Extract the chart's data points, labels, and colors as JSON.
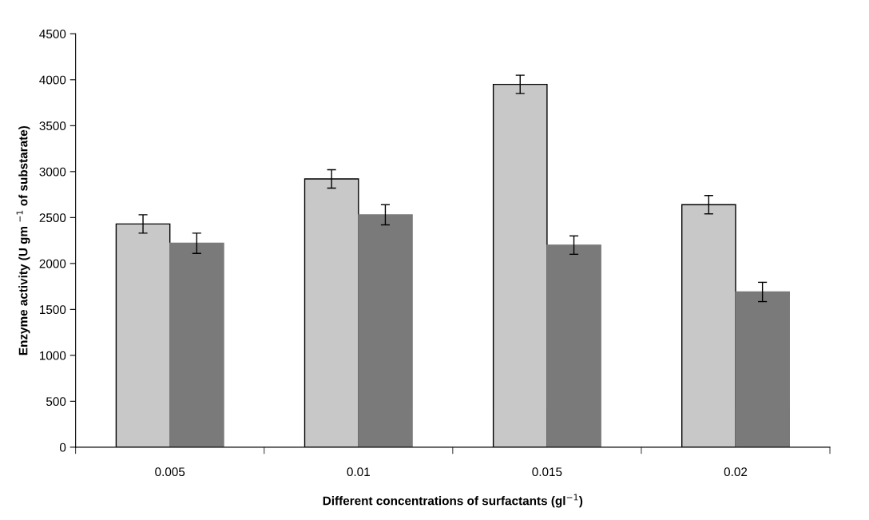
{
  "chart_data": {
    "type": "bar",
    "xlabel": "Different concentrations of surfactants (gl$^{−1}$)",
    "ylabel": "Enzyme activity (U gm $^{−1}$ of substarate)",
    "categories": [
      "0.005",
      "0.01",
      "0.015",
      "0.02"
    ],
    "series": [
      {
        "color": "#c8c8c8",
        "values": [
          2430,
          2920,
          3950,
          2640
        ],
        "errors": [
          100,
          100,
          100,
          100
        ]
      },
      {
        "color": "#7a7a7a",
        "values": [
          2220,
          2530,
          2200,
          1690
        ],
        "errors": [
          110,
          110,
          100,
          105
        ]
      }
    ],
    "ylim": [
      0,
      4500
    ],
    "yticks": [
      0,
      500,
      1000,
      1500,
      2000,
      2500,
      3000,
      3500,
      4000,
      4500
    ],
    "grid": false
  }
}
